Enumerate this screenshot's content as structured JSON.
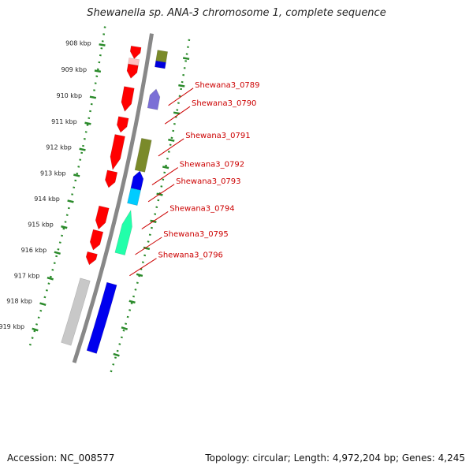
{
  "title": "Shewanella sp. ANA-3 chromosome 1, complete sequence",
  "accession": "Accession: NC_008577",
  "summary": "Topology: circular; Length: 4,972,204 bp; Genes: 4,245",
  "colors": {
    "backbone": "#888888",
    "tick_dots": "#2a8a2a",
    "tick_major": "#2a8a2a",
    "label_text": "#cc0000",
    "label_line": "#cc0000"
  },
  "ticks": [
    "908 kbp",
    "909 kbp",
    "910 kbp",
    "911 kbp",
    "912 kbp",
    "913 kbp",
    "914 kbp",
    "915 kbp",
    "916 kbp",
    "917 kbp",
    "918 kbp",
    "919 kbp"
  ],
  "features": [
    {
      "strand": "forward",
      "start": 0.0,
      "end": 0.035,
      "color": "#7a8a2a",
      "arrow": false
    },
    {
      "strand": "forward",
      "start": 0.035,
      "end": 0.055,
      "color": "#0000dd",
      "arrow": false
    },
    {
      "strand": "reverse",
      "start": 0.0,
      "end": 0.04,
      "color": "#ff0000",
      "arrow": true
    },
    {
      "strand": "reverse",
      "start": 0.04,
      "end": 0.06,
      "color": "#ffc0c0",
      "arrow": false
    },
    {
      "strand": "reverse",
      "start": 0.06,
      "end": 0.105,
      "color": "#ff0000",
      "arrow": true
    },
    {
      "strand": "forward",
      "start": 0.125,
      "end": 0.19,
      "color": "#7b6fd6",
      "arrow": true
    },
    {
      "strand": "reverse",
      "start": 0.135,
      "end": 0.215,
      "color": "#ff0000",
      "arrow": true
    },
    {
      "strand": "reverse",
      "start": 0.235,
      "end": 0.285,
      "color": "#ff0000",
      "arrow": true
    },
    {
      "strand": "forward",
      "start": 0.29,
      "end": 0.395,
      "color": "#7a8a2a",
      "arrow": false
    },
    {
      "strand": "reverse",
      "start": 0.295,
      "end": 0.41,
      "color": "#ff0000",
      "arrow": true
    },
    {
      "strand": "forward",
      "start": 0.395,
      "end": 0.455,
      "color": "#0000ee",
      "arrow": true
    },
    {
      "strand": "reverse",
      "start": 0.415,
      "end": 0.47,
      "color": "#ff0000",
      "arrow": true
    },
    {
      "strand": "forward",
      "start": 0.455,
      "end": 0.505,
      "color": "#00ccff",
      "arrow": false
    },
    {
      "strand": "forward",
      "start": 0.525,
      "end": 0.67,
      "color": "#22ffaa",
      "arrow": true
    },
    {
      "strand": "reverse",
      "start": 0.535,
      "end": 0.61,
      "color": "#ff0000",
      "arrow": true
    },
    {
      "strand": "reverse",
      "start": 0.615,
      "end": 0.68,
      "color": "#ff0000",
      "arrow": true
    },
    {
      "strand": "reverse",
      "start": 0.69,
      "end": 0.73,
      "color": "#ff0000",
      "arrow": true
    },
    {
      "strand": "forward",
      "start": 0.77,
      "end": 1.0,
      "color": "#0000ee",
      "arrow": false
    },
    {
      "strand": "reverse",
      "start": 0.78,
      "end": 1.0,
      "color": "#c8c8c8",
      "arrow": false
    }
  ],
  "labels": [
    {
      "name": "Shewana3_0789",
      "t": 0.17
    },
    {
      "name": "Shewana3_0790",
      "t": 0.23
    },
    {
      "name": "Shewana3_0791",
      "t": 0.335
    },
    {
      "name": "Shewana3_0792",
      "t": 0.43
    },
    {
      "name": "Shewana3_0793",
      "t": 0.485
    },
    {
      "name": "Shewana3_0794",
      "t": 0.575
    },
    {
      "name": "Shewana3_0795",
      "t": 0.66
    },
    {
      "name": "Shewana3_0796",
      "t": 0.73
    }
  ]
}
